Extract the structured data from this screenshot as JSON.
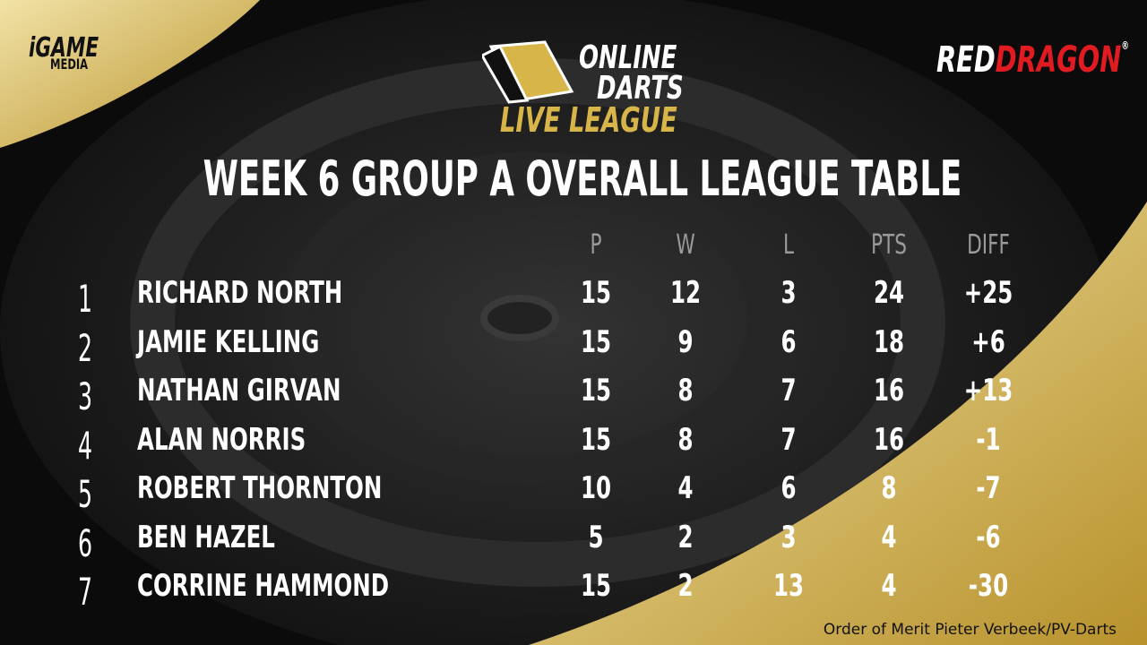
{
  "logos": {
    "left": [
      "iGAME",
      "MEDIA"
    ],
    "center": [
      "ONLINE",
      "DARTS",
      "LIVE LEAGUE"
    ],
    "right": [
      "RED",
      "DRAGON",
      "®"
    ]
  },
  "title": "WEEK 6 GROUP A OVERALL LEAGUE TABLE",
  "table": {
    "headers": [
      "P",
      "W",
      "L",
      "PTS",
      "DIFF"
    ],
    "rows": [
      [
        "1",
        "RICHARD NORTH",
        "15",
        "12",
        "3",
        "24",
        "+25"
      ],
      [
        "2",
        "JAMIE KELLING",
        "15",
        "9",
        "6",
        "18",
        "+6"
      ],
      [
        "3",
        "NATHAN GIRVAN",
        "15",
        "8",
        "7",
        "16",
        "+13"
      ],
      [
        "4",
        "ALAN NORRIS",
        "15",
        "8",
        "7",
        "16",
        "-1"
      ],
      [
        "5",
        "ROBERT THORNTON",
        "10",
        "4",
        "6",
        "8",
        "-7"
      ],
      [
        "6",
        "BEN HAZEL",
        "5",
        "2",
        "3",
        "4",
        "-6"
      ],
      [
        "7",
        "CORRINE HAMMOND",
        "15",
        "2",
        "13",
        "4",
        "-30"
      ]
    ]
  },
  "credit": "Order of Merit Pieter Verbeek/PV-Darts"
}
